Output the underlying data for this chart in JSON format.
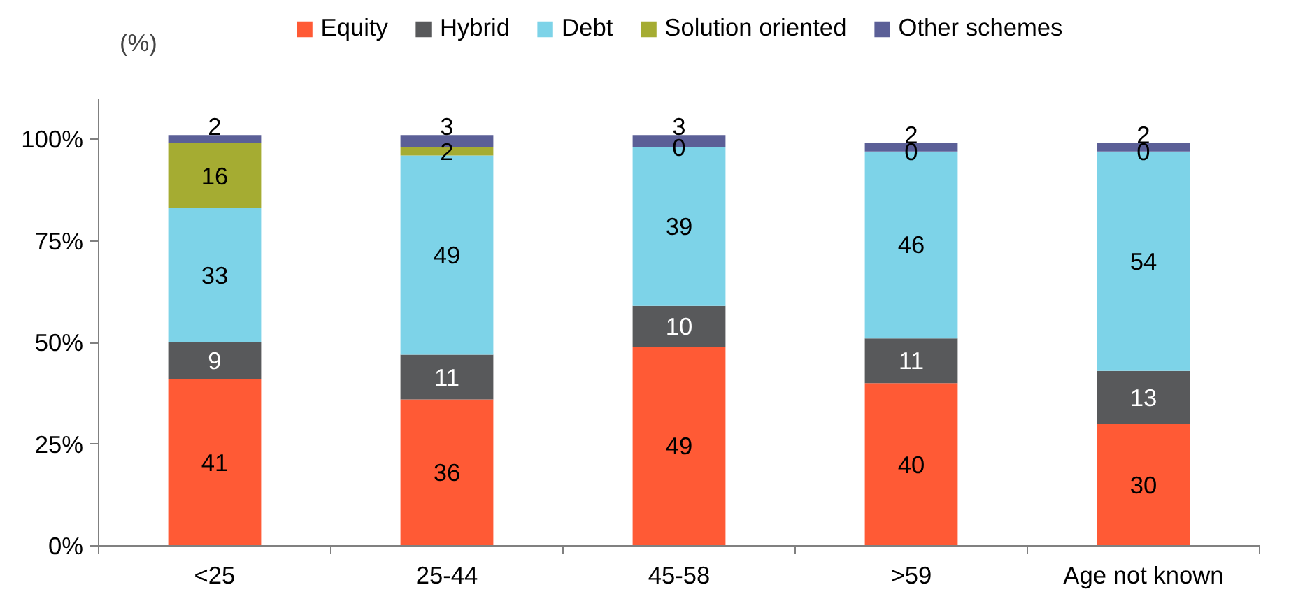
{
  "chart_data": {
    "type": "bar",
    "stacked": true,
    "ylabel": "(%)",
    "categories": [
      "<25",
      "25-44",
      "45-58",
      ">59",
      "Age not known"
    ],
    "series": [
      {
        "name": "Equity",
        "color": "#ff5a35",
        "values": [
          41,
          36,
          49,
          40,
          30
        ]
      },
      {
        "name": "Hybrid",
        "color": "#58595b",
        "values": [
          9,
          11,
          10,
          11,
          13
        ]
      },
      {
        "name": "Debt",
        "color": "#7dd3e8",
        "values": [
          33,
          49,
          39,
          46,
          54
        ]
      },
      {
        "name": "Solution oriented",
        "color": "#a5ac32",
        "values": [
          16,
          2,
          0,
          0,
          0
        ]
      },
      {
        "name": "Other schemes",
        "color": "#5b5f97",
        "values": [
          2,
          3,
          3,
          2,
          2
        ]
      }
    ],
    "ylim": [
      0,
      110
    ],
    "yticks": [
      {
        "value": 0,
        "label": "0%"
      },
      {
        "value": 25,
        "label": "25%"
      },
      {
        "value": 50,
        "label": "50%"
      },
      {
        "value": 75,
        "label": "75%"
      },
      {
        "value": 100,
        "label": "100%"
      }
    ],
    "grid": false,
    "legend": "top",
    "data_labels": true
  }
}
